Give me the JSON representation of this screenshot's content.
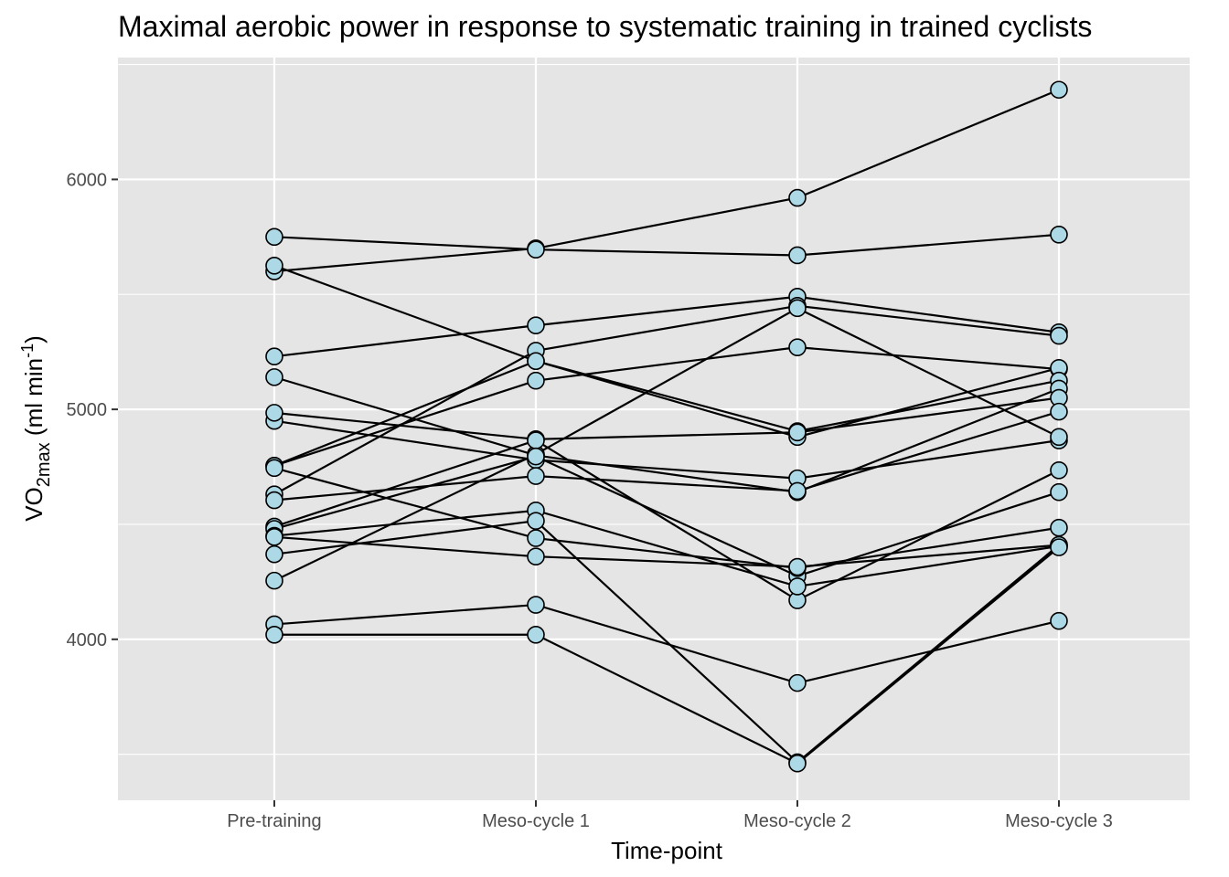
{
  "chart_data": {
    "type": "line",
    "title": "Maximal aerobic power in response to systematic training in trained cyclists",
    "xlabel": "Time-point",
    "ylabel": {
      "base": "VO",
      "sub": "2max",
      "unit_open": " (ml min",
      "sup": "-1",
      "unit_close": ")"
    },
    "categories": [
      "Pre-training",
      "Meso-cycle 1",
      "Meso-cycle 2",
      "Meso-cycle 3"
    ],
    "ylim": [
      3300,
      6530
    ],
    "y_ticks": [
      4000,
      5000,
      6000
    ],
    "y_tick_labels": [
      "4000",
      "5000",
      "6000"
    ],
    "grid": true,
    "point_color": "#add8e6",
    "line_color": "#000000",
    "panel_background": "#e5e5e5",
    "series": [
      {
        "values": [
          5600,
          5700,
          5920,
          6390
        ]
      },
      {
        "values": [
          5750,
          5695,
          5670,
          5760
        ]
      },
      {
        "values": [
          5230,
          5365,
          5490,
          5335
        ]
      },
      {
        "values": [
          4630,
          5255,
          5450,
          5320
        ]
      },
      {
        "values": [
          4755,
          5125,
          5270,
          5175
        ]
      },
      {
        "values": [
          4755,
          5210,
          4880,
          5180
        ]
      },
      {
        "values": [
          5625,
          5210,
          4905,
          5125
        ]
      },
      {
        "values": [
          5140,
          4800,
          4640,
          5090
        ]
      },
      {
        "values": [
          4950,
          4780,
          4700,
          4865
        ]
      },
      {
        "values": [
          4985,
          4870,
          4900,
          5050
        ]
      },
      {
        "values": [
          4605,
          4710,
          4645,
          4990
        ]
      },
      {
        "values": [
          4255,
          4805,
          5440,
          4880
        ]
      },
      {
        "values": [
          4490,
          4865,
          4170,
          4735
        ]
      },
      {
        "values": [
          4480,
          4795,
          4275,
          4640
        ]
      },
      {
        "values": [
          4745,
          4440,
          4310,
          4485
        ]
      },
      {
        "values": [
          4450,
          4560,
          4230,
          4405
        ]
      },
      {
        "values": [
          4370,
          4515,
          3465,
          4410
        ]
      },
      {
        "values": [
          4445,
          4360,
          4315,
          4410
        ]
      },
      {
        "values": [
          4065,
          4150,
          3810,
          4080
        ]
      },
      {
        "values": [
          4020,
          4020,
          3460,
          4400
        ]
      }
    ]
  }
}
